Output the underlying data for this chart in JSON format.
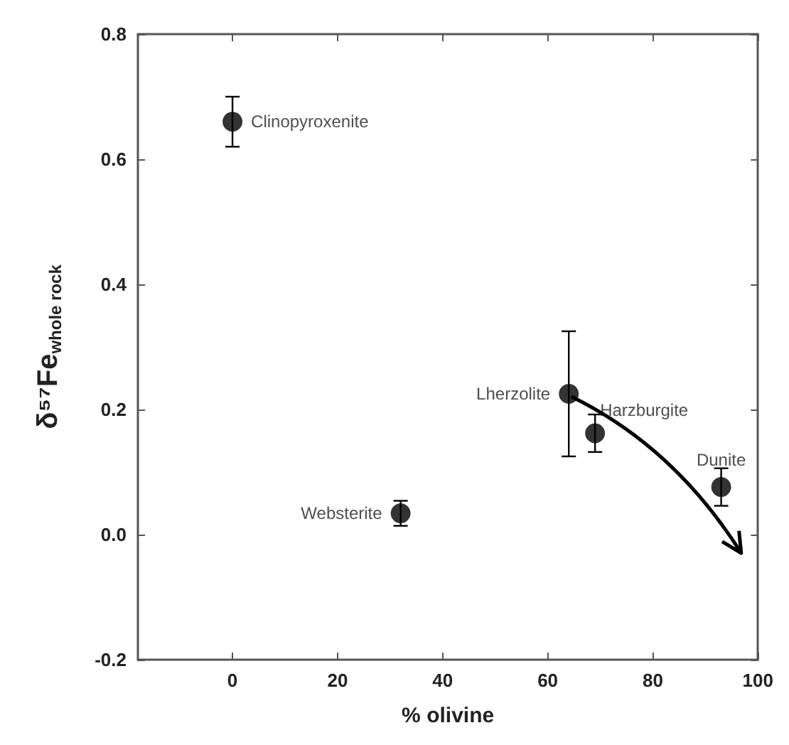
{
  "chart_data": {
    "type": "scatter",
    "xlabel": "% olivine",
    "ylabel": "δ⁵⁷Fe$_{whole rock}$",
    "xlim": [
      -18,
      100
    ],
    "xticks": [
      0,
      20,
      40,
      60,
      80,
      100
    ],
    "ylim": [
      -0.2,
      0.8
    ],
    "yticks": [
      -0.2,
      {
        "value": 0,
        "label": "0.0"
      },
      0.2,
      0.4,
      0.6,
      0.8
    ],
    "marker": "circle",
    "grid": false,
    "legend": false,
    "series": [
      {
        "name": "Clinopyroxenite",
        "color": "#000000",
        "x": [
          0
        ],
        "values": [
          0.66
        ],
        "errors": [
          0.04
        ]
      },
      {
        "name": "Websterite",
        "color": "#000000",
        "x": [
          32
        ],
        "values": [
          0.034
        ],
        "errors": [
          0.02
        ]
      },
      {
        "name": "Lherzolite",
        "color": "#000000",
        "x": [
          64
        ],
        "values": [
          0.225
        ],
        "errors": [
          0.1
        ]
      },
      {
        "name": "Harzburgite",
        "color": "#000000",
        "x": [
          69
        ],
        "values": [
          0.162
        ],
        "errors": [
          0.03
        ]
      },
      {
        "name": "Dunite",
        "color": "#000000",
        "x": [
          93
        ],
        "values": [
          0.076
        ],
        "errors": [
          0.03
        ]
      }
    ]
  }
}
